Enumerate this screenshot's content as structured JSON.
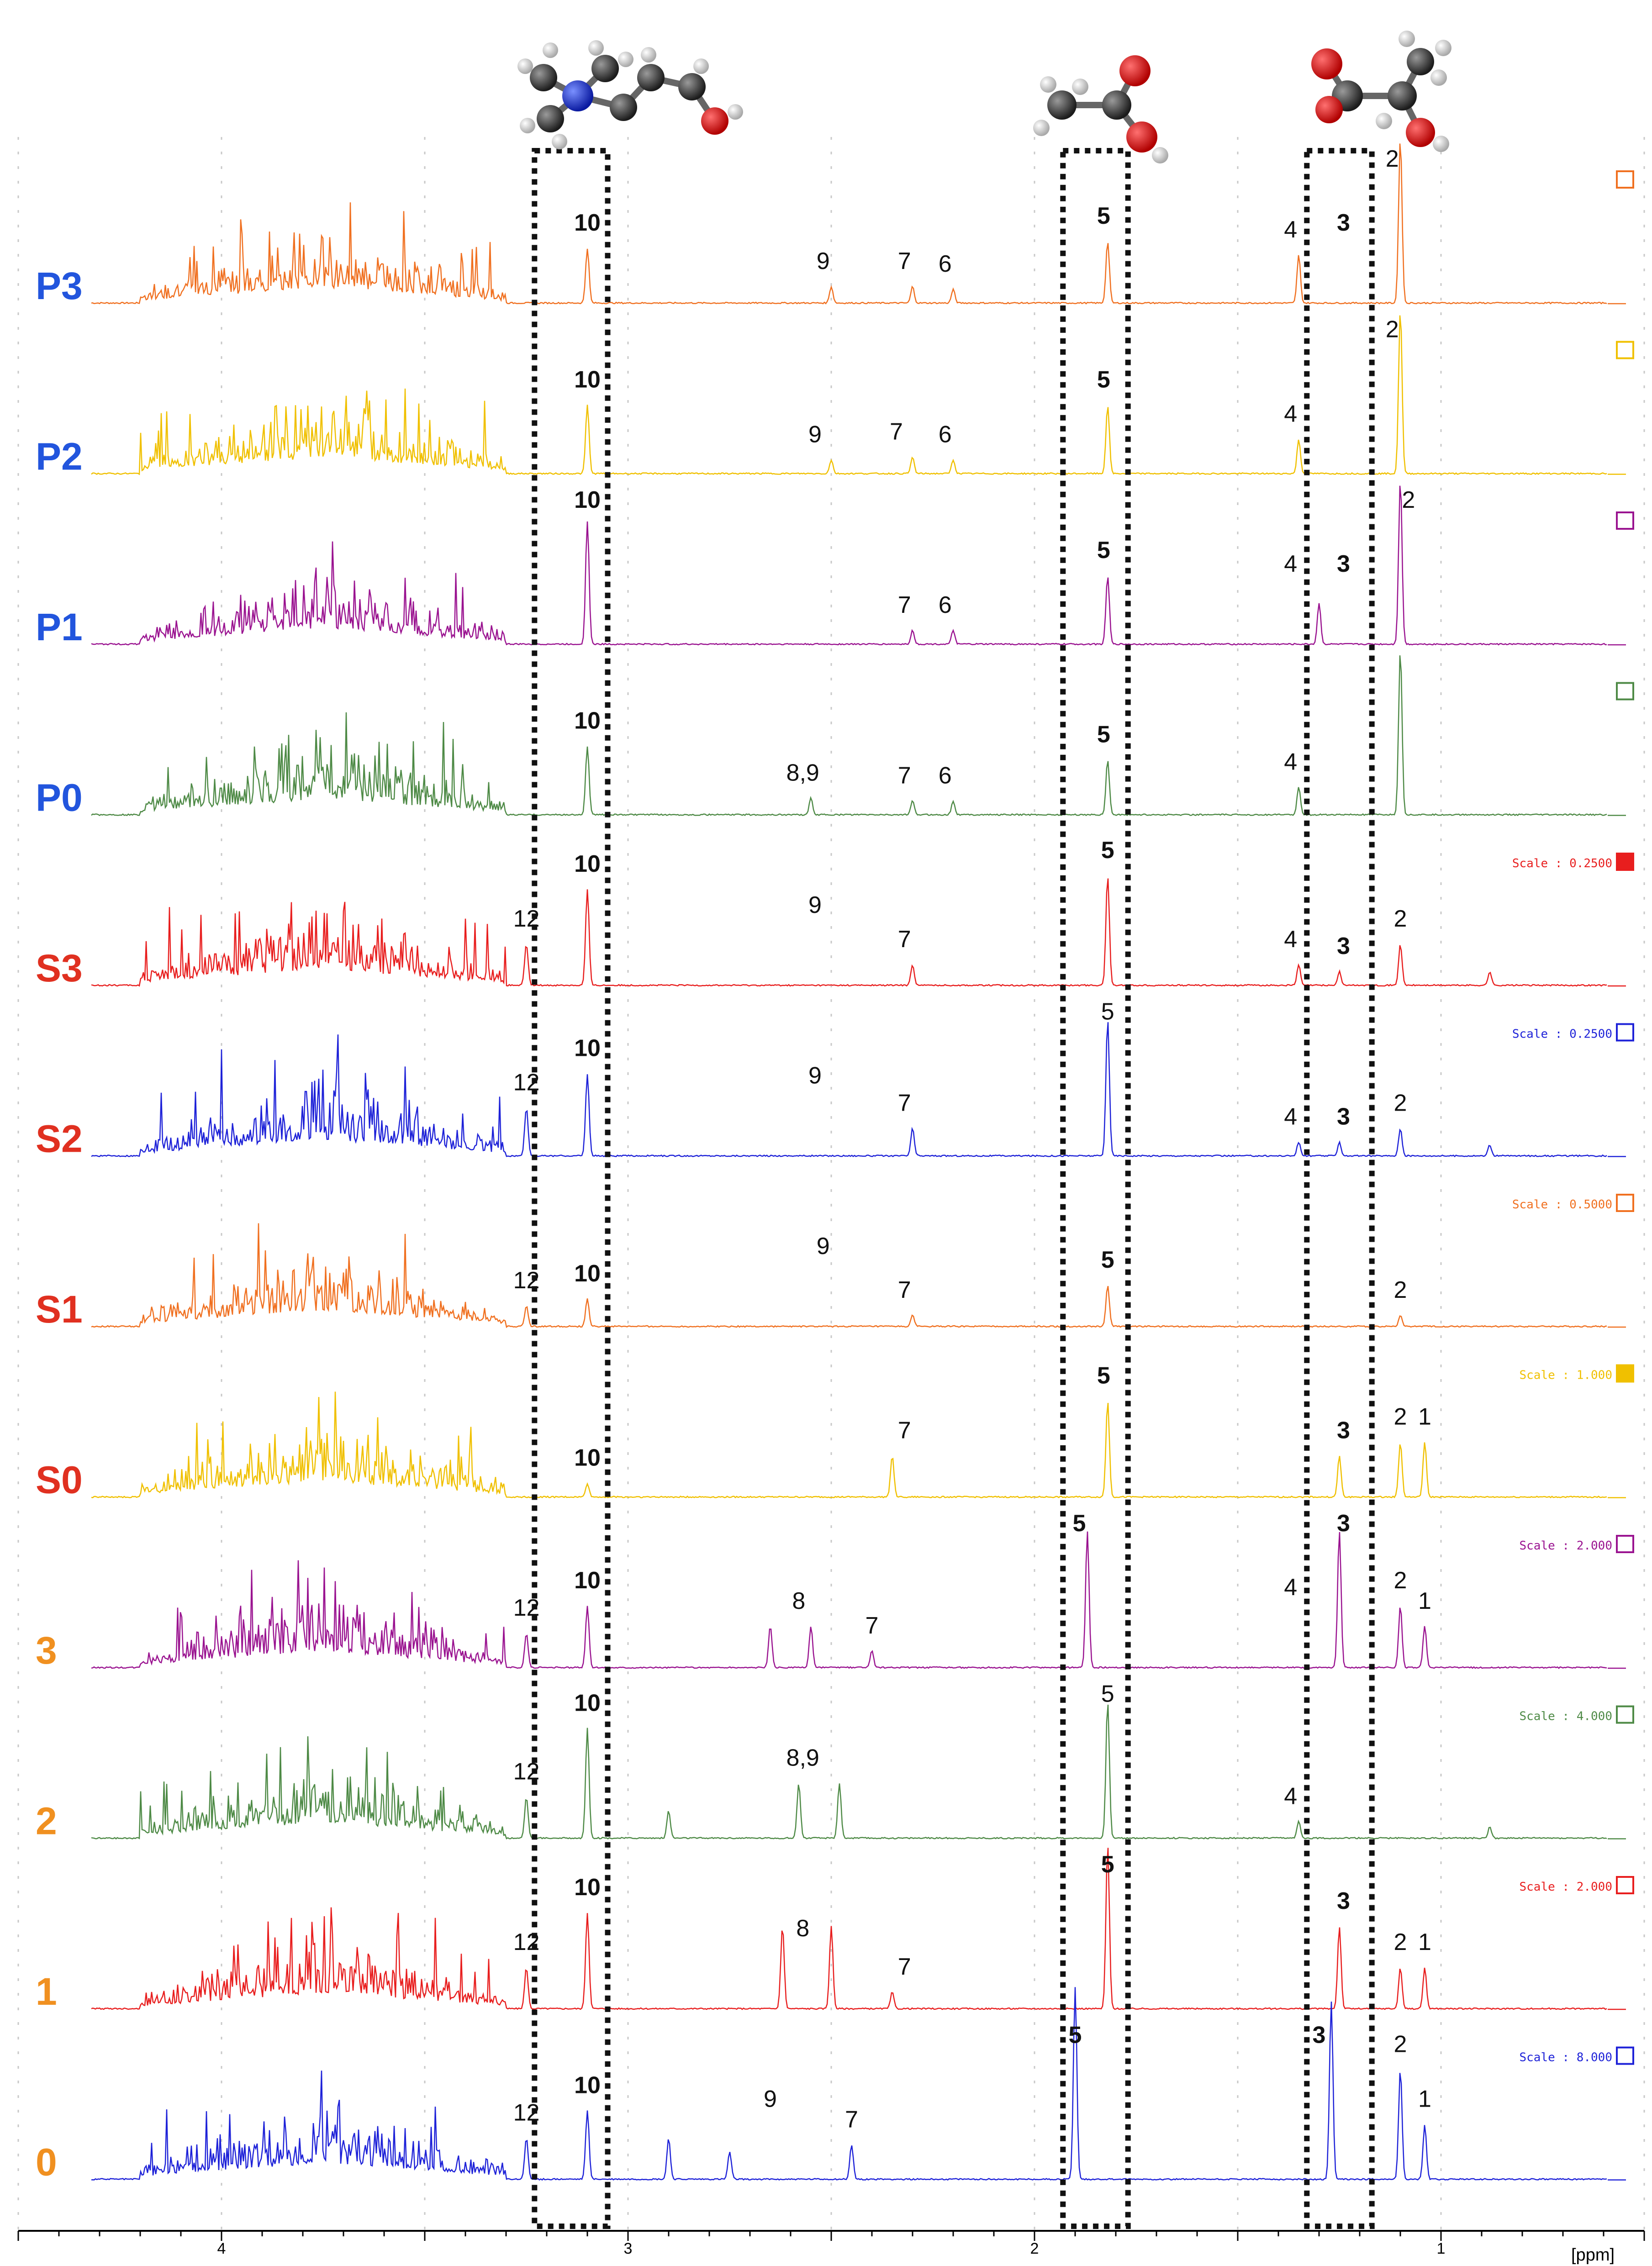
{
  "chart_data": {
    "type": "line",
    "chart_kind": "stacked 1H NMR spectra",
    "x_unit_label": "[ppm]",
    "xlim": [
      4.5,
      0.5
    ],
    "x_axis_reversed": true,
    "x_ticks": [
      {
        "value": 4,
        "label": "4"
      },
      {
        "value": 3,
        "label": "3"
      },
      {
        "value": 2,
        "label": "2"
      },
      {
        "value": 1,
        "label": "1"
      }
    ],
    "grid": "dotted vertical lines every 0.5 ppm",
    "highlight_boxes": [
      {
        "label": "choline region",
        "ppm_range": [
          3.05,
          3.23
        ]
      },
      {
        "label": "acetate region",
        "ppm_range": [
          1.77,
          1.93
        ]
      },
      {
        "label": "lactate region",
        "ppm_range": [
          1.17,
          1.33
        ]
      }
    ],
    "molecule_images": [
      "choline-molecule",
      "acetic-acid-molecule",
      "lactic-acid-molecule"
    ],
    "spectra": [
      {
        "name": "P3",
        "color": "#F07020",
        "name_color": "#2255DD",
        "scale": "",
        "scale_marker": "open",
        "peaks": [
          {
            "ppm": 3.1,
            "h": 0.4
          },
          {
            "ppm": 2.5,
            "h": 0.12
          },
          {
            "ppm": 2.3,
            "h": 0.12
          },
          {
            "ppm": 2.2,
            "h": 0.1
          },
          {
            "ppm": 1.82,
            "h": 0.45
          },
          {
            "ppm": 1.35,
            "h": 0.35
          },
          {
            "ppm": 1.1,
            "h": 1.2
          }
        ],
        "annotations": [
          {
            "ppm": 3.1,
            "text": "10",
            "bold": true
          },
          {
            "ppm": 2.52,
            "text": "9"
          },
          {
            "ppm": 2.32,
            "text": "7"
          },
          {
            "ppm": 2.22,
            "text": "6"
          },
          {
            "ppm": 1.83,
            "text": "5",
            "bold": true
          },
          {
            "ppm": 1.37,
            "text": "4"
          },
          {
            "ppm": 1.24,
            "text": "3",
            "bold": true
          },
          {
            "ppm": 1.12,
            "text": "2"
          }
        ]
      },
      {
        "name": "P2",
        "color": "#F0C000",
        "name_color": "#2255DD",
        "scale": "",
        "scale_marker": "open",
        "peaks": [
          {
            "ppm": 3.1,
            "h": 0.5
          },
          {
            "ppm": 2.5,
            "h": 0.1
          },
          {
            "ppm": 2.3,
            "h": 0.12
          },
          {
            "ppm": 2.2,
            "h": 0.1
          },
          {
            "ppm": 1.82,
            "h": 0.5
          },
          {
            "ppm": 1.35,
            "h": 0.25
          },
          {
            "ppm": 1.1,
            "h": 1.2
          }
        ],
        "annotations": [
          {
            "ppm": 3.1,
            "text": "10",
            "bold": true
          },
          {
            "ppm": 2.54,
            "text": "9"
          },
          {
            "ppm": 2.34,
            "text": "7"
          },
          {
            "ppm": 2.22,
            "text": "6"
          },
          {
            "ppm": 1.83,
            "text": "5",
            "bold": true
          },
          {
            "ppm": 1.37,
            "text": "4"
          },
          {
            "ppm": 1.12,
            "text": "2"
          }
        ]
      },
      {
        "name": "P1",
        "color": "#9A1390",
        "name_color": "#2255DD",
        "scale": "",
        "scale_marker": "open",
        "peaks": [
          {
            "ppm": 3.1,
            "h": 0.9
          },
          {
            "ppm": 2.3,
            "h": 0.1
          },
          {
            "ppm": 2.2,
            "h": 0.1
          },
          {
            "ppm": 1.82,
            "h": 0.5
          },
          {
            "ppm": 1.3,
            "h": 0.3
          },
          {
            "ppm": 1.1,
            "h": 1.2
          }
        ],
        "annotations": [
          {
            "ppm": 3.1,
            "text": "10",
            "bold": true
          },
          {
            "ppm": 2.32,
            "text": "7"
          },
          {
            "ppm": 2.22,
            "text": "6"
          },
          {
            "ppm": 1.83,
            "text": "5",
            "bold": true
          },
          {
            "ppm": 1.37,
            "text": "4"
          },
          {
            "ppm": 1.24,
            "text": "3",
            "bold": true
          },
          {
            "ppm": 1.08,
            "text": "2"
          }
        ]
      },
      {
        "name": "P0",
        "color": "#4E8A46",
        "name_color": "#2255DD",
        "scale": "",
        "scale_marker": "open",
        "peaks": [
          {
            "ppm": 3.1,
            "h": 0.5
          },
          {
            "ppm": 2.55,
            "h": 0.12
          },
          {
            "ppm": 2.3,
            "h": 0.1
          },
          {
            "ppm": 2.2,
            "h": 0.1
          },
          {
            "ppm": 1.82,
            "h": 0.4
          },
          {
            "ppm": 1.35,
            "h": 0.2
          },
          {
            "ppm": 1.1,
            "h": 1.2
          }
        ],
        "annotations": [
          {
            "ppm": 3.1,
            "text": "10",
            "bold": true
          },
          {
            "ppm": 2.57,
            "text": "8,9"
          },
          {
            "ppm": 2.32,
            "text": "7"
          },
          {
            "ppm": 2.22,
            "text": "6"
          },
          {
            "ppm": 1.83,
            "text": "5",
            "bold": true
          },
          {
            "ppm": 1.37,
            "text": "4"
          }
        ]
      },
      {
        "name": "S3",
        "color": "#E81E1E",
        "name_color": "#E03020",
        "scale": "Scale : 0.2500",
        "scale_marker": "filled",
        "peaks": [
          {
            "ppm": 3.25,
            "h": 0.3
          },
          {
            "ppm": 3.1,
            "h": 0.7
          },
          {
            "ppm": 2.3,
            "h": 0.15
          },
          {
            "ppm": 1.82,
            "h": 0.8
          },
          {
            "ppm": 1.35,
            "h": 0.15
          },
          {
            "ppm": 1.25,
            "h": 0.1
          },
          {
            "ppm": 1.1,
            "h": 0.3
          },
          {
            "ppm": 0.88,
            "h": 0.1
          }
        ],
        "annotations": [
          {
            "ppm": 3.25,
            "text": "12"
          },
          {
            "ppm": 3.1,
            "text": "10",
            "bold": true
          },
          {
            "ppm": 2.54,
            "text": "9"
          },
          {
            "ppm": 2.32,
            "text": "7"
          },
          {
            "ppm": 1.82,
            "text": "5",
            "bold": true
          },
          {
            "ppm": 1.37,
            "text": "4"
          },
          {
            "ppm": 1.24,
            "text": "3",
            "bold": true
          },
          {
            "ppm": 1.1,
            "text": "2"
          }
        ]
      },
      {
        "name": "S2",
        "color": "#1E22D8",
        "name_color": "#E03020",
        "scale": "Scale : 0.2500",
        "scale_marker": "open",
        "peaks": [
          {
            "ppm": 3.25,
            "h": 0.35
          },
          {
            "ppm": 3.1,
            "h": 0.6
          },
          {
            "ppm": 2.3,
            "h": 0.2
          },
          {
            "ppm": 1.82,
            "h": 1.0
          },
          {
            "ppm": 1.35,
            "h": 0.1
          },
          {
            "ppm": 1.25,
            "h": 0.1
          },
          {
            "ppm": 1.1,
            "h": 0.2
          },
          {
            "ppm": 0.88,
            "h": 0.08
          }
        ],
        "annotations": [
          {
            "ppm": 3.25,
            "text": "12"
          },
          {
            "ppm": 3.1,
            "text": "10",
            "bold": true
          },
          {
            "ppm": 2.54,
            "text": "9"
          },
          {
            "ppm": 2.32,
            "text": "7"
          },
          {
            "ppm": 1.82,
            "text": "5"
          },
          {
            "ppm": 1.37,
            "text": "4"
          },
          {
            "ppm": 1.24,
            "text": "3",
            "bold": true
          },
          {
            "ppm": 1.1,
            "text": "2"
          }
        ]
      },
      {
        "name": "S1",
        "color": "#F07020",
        "name_color": "#E03020",
        "scale": "Scale : 0.5000",
        "scale_marker": "open",
        "peaks": [
          {
            "ppm": 3.25,
            "h": 0.15
          },
          {
            "ppm": 3.1,
            "h": 0.2
          },
          {
            "ppm": 2.3,
            "h": 0.08
          },
          {
            "ppm": 1.82,
            "h": 0.3
          },
          {
            "ppm": 1.1,
            "h": 0.08
          }
        ],
        "annotations": [
          {
            "ppm": 3.25,
            "text": "12"
          },
          {
            "ppm": 3.1,
            "text": "10",
            "bold": true
          },
          {
            "ppm": 2.52,
            "text": "9"
          },
          {
            "ppm": 2.32,
            "text": "7"
          },
          {
            "ppm": 1.82,
            "text": "5",
            "bold": true
          },
          {
            "ppm": 1.1,
            "text": "2"
          }
        ]
      },
      {
        "name": "S0",
        "color": "#F0C000",
        "name_color": "#E03020",
        "scale": "Scale : 1.000",
        "scale_marker": "filled",
        "peaks": [
          {
            "ppm": 3.1,
            "h": 0.1
          },
          {
            "ppm": 2.35,
            "h": 0.3
          },
          {
            "ppm": 1.82,
            "h": 0.7
          },
          {
            "ppm": 1.25,
            "h": 0.3
          },
          {
            "ppm": 1.1,
            "h": 0.4
          },
          {
            "ppm": 1.04,
            "h": 0.4
          }
        ],
        "annotations": [
          {
            "ppm": 3.1,
            "text": "10",
            "bold": true
          },
          {
            "ppm": 2.32,
            "text": "7"
          },
          {
            "ppm": 1.83,
            "text": "5",
            "bold": true
          },
          {
            "ppm": 1.24,
            "text": "3",
            "bold": true
          },
          {
            "ppm": 1.1,
            "text": "2"
          },
          {
            "ppm": 1.04,
            "text": "1"
          }
        ]
      },
      {
        "name": "3",
        "color": "#9A1390",
        "name_color": "#F09020",
        "scale": "Scale : 2.000",
        "scale_marker": "open",
        "peaks": [
          {
            "ppm": 3.25,
            "h": 0.25
          },
          {
            "ppm": 3.1,
            "h": 0.45
          },
          {
            "ppm": 2.65,
            "h": 0.3
          },
          {
            "ppm": 2.55,
            "h": 0.3
          },
          {
            "ppm": 2.4,
            "h": 0.12
          },
          {
            "ppm": 1.87,
            "h": 1.0
          },
          {
            "ppm": 1.25,
            "h": 1.0
          },
          {
            "ppm": 1.1,
            "h": 0.45
          },
          {
            "ppm": 1.04,
            "h": 0.3
          }
        ],
        "annotations": [
          {
            "ppm": 3.25,
            "text": "12"
          },
          {
            "ppm": 3.1,
            "text": "10",
            "bold": true
          },
          {
            "ppm": 2.58,
            "text": "8"
          },
          {
            "ppm": 2.4,
            "text": "7"
          },
          {
            "ppm": 1.89,
            "text": "5",
            "bold": true
          },
          {
            "ppm": 1.37,
            "text": "4"
          },
          {
            "ppm": 1.24,
            "text": "3",
            "bold": true
          },
          {
            "ppm": 1.1,
            "text": "2"
          },
          {
            "ppm": 1.04,
            "text": "1"
          }
        ]
      },
      {
        "name": "2",
        "color": "#4E8A46",
        "name_color": "#F09020",
        "scale": "Scale : 4.000",
        "scale_marker": "open",
        "peaks": [
          {
            "ppm": 3.25,
            "h": 0.3
          },
          {
            "ppm": 3.1,
            "h": 0.8
          },
          {
            "ppm": 2.9,
            "h": 0.2
          },
          {
            "ppm": 2.58,
            "h": 0.4
          },
          {
            "ppm": 2.48,
            "h": 0.4
          },
          {
            "ppm": 1.82,
            "h": 1.0
          },
          {
            "ppm": 1.35,
            "h": 0.12
          },
          {
            "ppm": 0.88,
            "h": 0.08
          }
        ],
        "annotations": [
          {
            "ppm": 3.25,
            "text": "12"
          },
          {
            "ppm": 3.1,
            "text": "10",
            "bold": true
          },
          {
            "ppm": 2.57,
            "text": "8,9"
          },
          {
            "ppm": 1.82,
            "text": "5"
          },
          {
            "ppm": 1.37,
            "text": "4"
          }
        ]
      },
      {
        "name": "1",
        "color": "#E81E1E",
        "name_color": "#F09020",
        "scale": "Scale : 2.000",
        "scale_marker": "open",
        "peaks": [
          {
            "ppm": 3.25,
            "h": 0.3
          },
          {
            "ppm": 3.1,
            "h": 0.7
          },
          {
            "ppm": 2.62,
            "h": 0.6
          },
          {
            "ppm": 2.5,
            "h": 0.6
          },
          {
            "ppm": 2.35,
            "h": 0.12
          },
          {
            "ppm": 1.82,
            "h": 1.2
          },
          {
            "ppm": 1.25,
            "h": 0.6
          },
          {
            "ppm": 1.1,
            "h": 0.3
          },
          {
            "ppm": 1.04,
            "h": 0.3
          }
        ],
        "annotations": [
          {
            "ppm": 3.25,
            "text": "12"
          },
          {
            "ppm": 3.1,
            "text": "10",
            "bold": true
          },
          {
            "ppm": 2.57,
            "text": "8"
          },
          {
            "ppm": 2.32,
            "text": "7"
          },
          {
            "ppm": 1.82,
            "text": "5",
            "bold": true
          },
          {
            "ppm": 1.24,
            "text": "3",
            "bold": true
          },
          {
            "ppm": 1.1,
            "text": "2"
          },
          {
            "ppm": 1.04,
            "text": "1"
          }
        ]
      },
      {
        "name": "0",
        "color": "#1E22D8",
        "name_color": "#F09020",
        "scale": "Scale : 8.000",
        "scale_marker": "open",
        "peaks": [
          {
            "ppm": 3.25,
            "h": 0.3
          },
          {
            "ppm": 3.1,
            "h": 0.5
          },
          {
            "ppm": 2.9,
            "h": 0.3
          },
          {
            "ppm": 2.75,
            "h": 0.2
          },
          {
            "ppm": 2.45,
            "h": 0.25
          },
          {
            "ppm": 1.9,
            "h": 1.4
          },
          {
            "ppm": 1.27,
            "h": 1.3
          },
          {
            "ppm": 1.1,
            "h": 0.8
          },
          {
            "ppm": 1.04,
            "h": 0.4
          }
        ],
        "annotations": [
          {
            "ppm": 3.25,
            "text": "12"
          },
          {
            "ppm": 3.1,
            "text": "10",
            "bold": true
          },
          {
            "ppm": 2.65,
            "text": "9"
          },
          {
            "ppm": 2.45,
            "text": "7"
          },
          {
            "ppm": 1.9,
            "text": "5",
            "bold": true
          },
          {
            "ppm": 1.3,
            "text": "3",
            "bold": true
          },
          {
            "ppm": 1.1,
            "text": "2"
          },
          {
            "ppm": 1.04,
            "text": "1"
          }
        ]
      }
    ]
  }
}
